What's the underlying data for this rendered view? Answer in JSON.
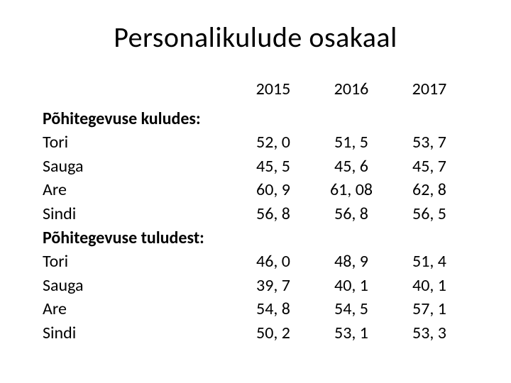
{
  "title": "Personalikulude osakaal",
  "columns": [
    "2015",
    "2016",
    "2017"
  ],
  "sections": [
    {
      "header": "Põhitegevuse kuludes:",
      "rows": [
        {
          "label": "Tori",
          "values": [
            "52, 0",
            "51, 5",
            "53, 7"
          ]
        },
        {
          "label": "Sauga",
          "values": [
            "45, 5",
            "45, 6",
            "45, 7"
          ]
        },
        {
          "label": "Are",
          "values": [
            "60, 9",
            "61, 08",
            "62, 8"
          ]
        },
        {
          "label": "Sindi",
          "values": [
            "56, 8",
            "56, 8",
            "56, 5"
          ]
        }
      ]
    },
    {
      "header": "Põhitegevuse tuludest:",
      "rows": [
        {
          "label": "Tori",
          "values": [
            "46, 0",
            "48, 9",
            "51, 4"
          ]
        },
        {
          "label": "Sauga",
          "values": [
            "39, 7",
            "40, 1",
            "40, 1"
          ]
        },
        {
          "label": "Are",
          "values": [
            "54, 8",
            "54, 5",
            "57, 1"
          ]
        },
        {
          "label": "Sindi",
          "values": [
            "50, 2",
            "53, 1",
            "53, 3"
          ]
        }
      ]
    }
  ],
  "style": {
    "background_color": "#ffffff",
    "text_color": "#000000",
    "title_fontsize": 40,
    "body_fontsize": 24,
    "font_family": "Calibri"
  }
}
